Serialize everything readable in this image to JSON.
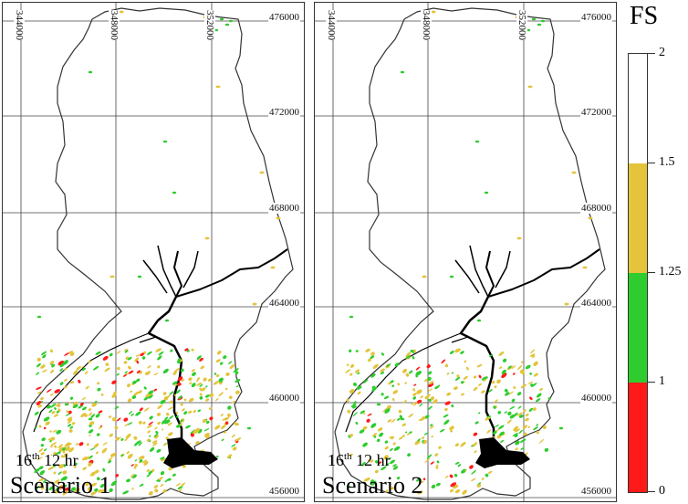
{
  "panels": [
    {
      "id": "scenario-1",
      "time_day": "16",
      "time_suffix": "th",
      "time_hour": "12 hr",
      "scenario": "Scenario 1",
      "x_ticks": [
        "344000",
        "348000",
        "352000"
      ],
      "y_ticks": [
        "476000",
        "472000",
        "468000",
        "464000",
        "460000",
        "456000"
      ]
    },
    {
      "id": "scenario-2",
      "time_day": "16",
      "time_suffix": "th",
      "time_hour": "12 hr",
      "scenario": "Scenario 2",
      "x_ticks": [
        "344000",
        "348000",
        "352000"
      ],
      "y_ticks": [
        "476000",
        "472000",
        "468000",
        "464000",
        "460000",
        "456000"
      ]
    }
  ],
  "legend": {
    "title": "FS",
    "ticks": [
      "2",
      "1.5",
      "1.25",
      "1",
      "0"
    ],
    "classes": [
      {
        "range": "1.5-2",
        "color": "#ffffff"
      },
      {
        "range": "1.25-1.5",
        "color": "#e3c43b"
      },
      {
        "range": "1-1.25",
        "color": "#2ecc2e"
      },
      {
        "range": "0-1",
        "color": "#ff1a1a"
      }
    ]
  },
  "colors": {
    "boundary": "#333333",
    "river": "#000000",
    "grid": "#444444"
  }
}
